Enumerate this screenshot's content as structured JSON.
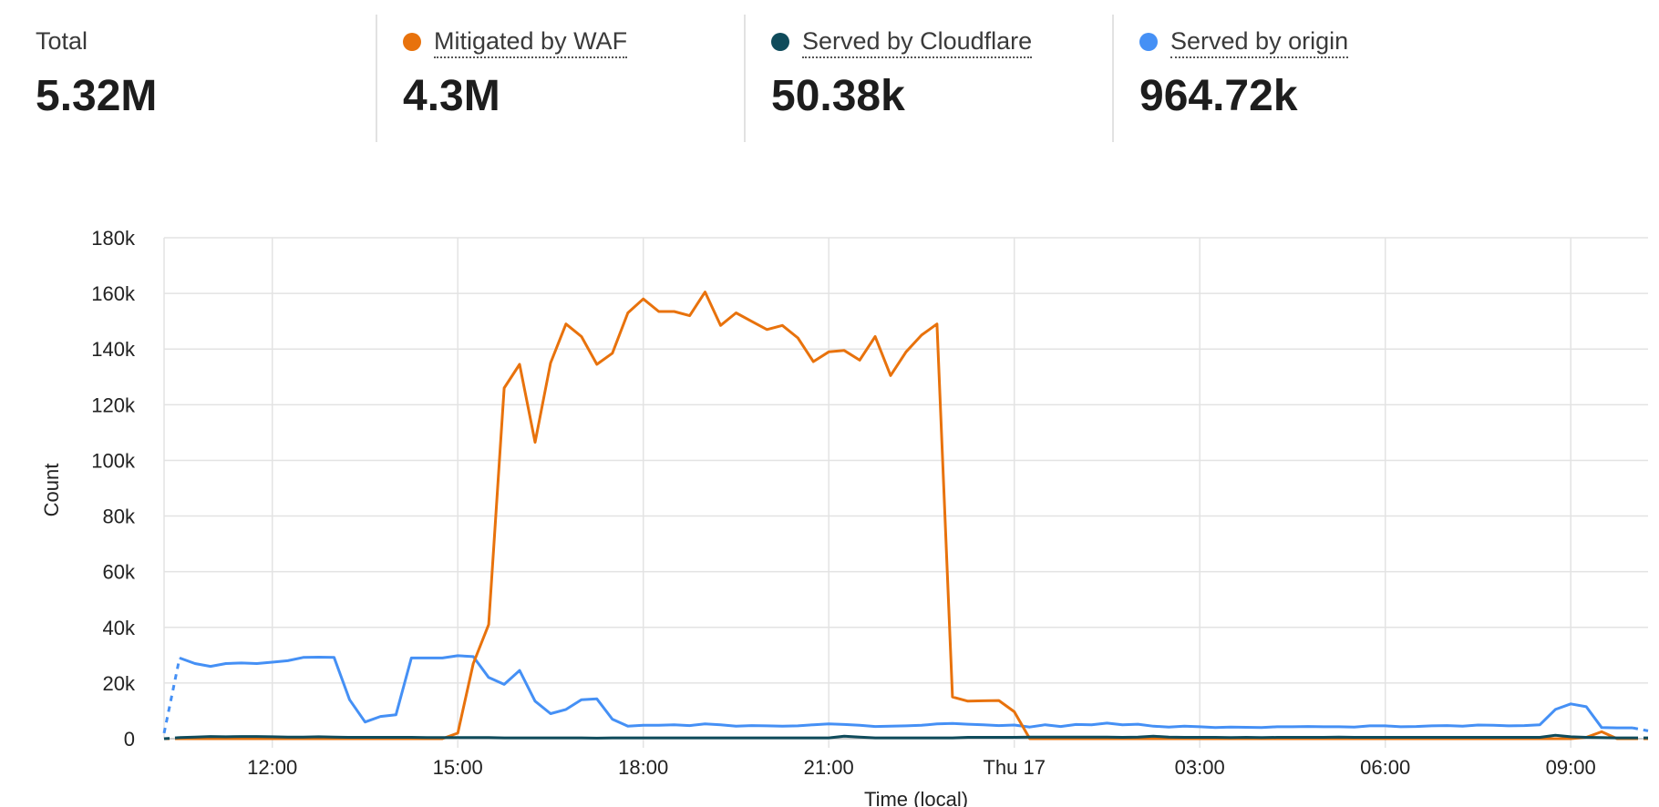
{
  "summary": {
    "total": {
      "label": "Total",
      "value": "5.32M"
    },
    "waf": {
      "label": "Mitigated by WAF",
      "value": "4.3M",
      "color": "#e8720c"
    },
    "cloudflare": {
      "label": "Served by Cloudflare",
      "value": "50.38k",
      "color": "#0f4b5b"
    },
    "origin": {
      "label": "Served by origin",
      "value": "964.72k",
      "color": "#4590f5"
    }
  },
  "chart_data": {
    "type": "line",
    "xlabel": "Time (local)",
    "ylabel": "Count",
    "ylim": [
      0,
      180000
    ],
    "yticks": [
      0,
      20000,
      40000,
      60000,
      80000,
      100000,
      120000,
      140000,
      160000,
      180000
    ],
    "ytick_labels": [
      "0",
      "20k",
      "40k",
      "60k",
      "80k",
      "100k",
      "120k",
      "140k",
      "160k",
      "180k"
    ],
    "x_unit": "hours since 00:00 on the day before Thu 17",
    "xlim": [
      10.25,
      34.25
    ],
    "xticks": [
      12,
      15,
      18,
      21,
      24,
      27,
      30,
      33
    ],
    "xtick_labels": [
      "12:00",
      "15:00",
      "18:00",
      "21:00",
      "Thu 17",
      "03:00",
      "06:00",
      "09:00"
    ],
    "grid": true,
    "series": [
      {
        "name": "Served by origin",
        "color": "#4590f5",
        "x": [
          10.25,
          10.5,
          10.75,
          11.0,
          11.25,
          11.5,
          11.75,
          12.0,
          12.25,
          12.5,
          12.75,
          13.0,
          13.25,
          13.5,
          13.75,
          14.0,
          14.25,
          14.5,
          14.75,
          15.0,
          15.25,
          15.5,
          15.75,
          16.0,
          16.25,
          16.5,
          16.75,
          17.0,
          17.25,
          17.5,
          17.75,
          18.0,
          18.25,
          18.5,
          18.75,
          19.0,
          19.25,
          19.5,
          19.75,
          20.0,
          20.25,
          20.5,
          20.75,
          21.0,
          21.25,
          21.5,
          21.75,
          22.0,
          22.25,
          22.5,
          22.75,
          23.0,
          23.25,
          23.5,
          23.75,
          24.0,
          24.25,
          24.5,
          24.75,
          25.0,
          25.25,
          25.5,
          25.75,
          26.0,
          26.25,
          26.5,
          26.75,
          27.0,
          27.25,
          27.5,
          27.75,
          28.0,
          28.25,
          28.5,
          28.75,
          29.0,
          29.25,
          29.5,
          29.75,
          30.0,
          30.25,
          30.5,
          30.75,
          31.0,
          31.25,
          31.5,
          31.75,
          32.0,
          32.25,
          32.5,
          32.75,
          33.0,
          33.25,
          33.5,
          33.75,
          34.0,
          34.25
        ],
        "values": [
          2000,
          29000,
          27000,
          26000,
          27000,
          27200,
          27000,
          27500,
          28000,
          29200,
          29300,
          29200,
          14000,
          6000,
          8000,
          8600,
          29000,
          29000,
          29000,
          29800,
          29500,
          22000,
          19500,
          24500,
          13500,
          9000,
          10500,
          14000,
          14300,
          7000,
          4500,
          4800,
          4800,
          5000,
          4700,
          5300,
          5000,
          4500,
          4700,
          4600,
          4500,
          4600,
          5000,
          5300,
          5100,
          4800,
          4400,
          4500,
          4600,
          4800,
          5300,
          5500,
          5200,
          5000,
          4700,
          4900,
          4200,
          5000,
          4400,
          5100,
          5000,
          5600,
          5000,
          5200,
          4500,
          4200,
          4500,
          4300,
          4000,
          4200,
          4100,
          4000,
          4300,
          4300,
          4400,
          4300,
          4300,
          4200,
          4600,
          4600,
          4300,
          4400,
          4600,
          4700,
          4500,
          4900,
          4800,
          4600,
          4700,
          5000,
          10500,
          12500,
          11500,
          4000,
          3900,
          3900,
          2800
        ],
        "dashed_start_segments": 1,
        "dashed_end_segments": 1
      },
      {
        "name": "Mitigated by WAF",
        "color": "#e8720c",
        "x": [
          10.25,
          10.5,
          10.75,
          11.0,
          11.25,
          11.5,
          11.75,
          12.0,
          12.25,
          12.5,
          12.75,
          13.0,
          13.25,
          13.5,
          13.75,
          14.0,
          14.25,
          14.5,
          14.75,
          15.0,
          15.25,
          15.5,
          15.75,
          16.0,
          16.25,
          16.5,
          16.75,
          17.0,
          17.25,
          17.5,
          17.75,
          18.0,
          18.25,
          18.5,
          18.75,
          19.0,
          19.25,
          19.5,
          19.75,
          20.0,
          20.25,
          20.5,
          20.75,
          21.0,
          21.25,
          21.5,
          21.75,
          22.0,
          22.25,
          22.5,
          22.75,
          23.0,
          23.25,
          23.5,
          23.75,
          24.0,
          24.25,
          24.5,
          24.75,
          25.0,
          25.25,
          25.5,
          25.75,
          26.0,
          26.25,
          26.5,
          26.75,
          27.0,
          27.25,
          27.5,
          27.75,
          28.0,
          28.25,
          28.5,
          28.75,
          29.0,
          29.25,
          29.5,
          29.75,
          30.0,
          30.25,
          30.5,
          30.75,
          31.0,
          31.25,
          31.5,
          31.75,
          32.0,
          32.25,
          32.5,
          32.75,
          33.0,
          33.25,
          33.5,
          33.75,
          34.0,
          34.25
        ],
        "values": [
          0,
          0,
          0,
          0,
          0,
          0,
          0,
          0,
          0,
          0,
          0,
          0,
          0,
          0,
          0,
          0,
          0,
          0,
          0,
          2000,
          27000,
          41000,
          126000,
          134500,
          106500,
          135000,
          149000,
          144500,
          134500,
          138500,
          153000,
          158000,
          153500,
          153500,
          152000,
          160500,
          148500,
          153000,
          150000,
          147000,
          148500,
          144000,
          135500,
          139000,
          139500,
          136000,
          144500,
          130500,
          139000,
          145000,
          149000,
          15000,
          13500,
          13600,
          13700,
          9700,
          0,
          0,
          0,
          0,
          0,
          0,
          0,
          0,
          0,
          0,
          0,
          0,
          0,
          0,
          0,
          0,
          0,
          0,
          0,
          0,
          0,
          0,
          0,
          0,
          0,
          0,
          0,
          0,
          0,
          0,
          0,
          0,
          0,
          0,
          0,
          0,
          500,
          2500,
          0,
          0,
          0
        ],
        "dashed_start_segments": 1,
        "dashed_end_segments": 1
      },
      {
        "name": "Served by Cloudflare",
        "color": "#0f4b5b",
        "x": [
          10.25,
          10.5,
          10.75,
          11.0,
          11.25,
          11.5,
          11.75,
          12.0,
          12.25,
          12.5,
          12.75,
          13.0,
          13.25,
          13.5,
          13.75,
          14.0,
          14.25,
          14.5,
          14.75,
          15.0,
          15.25,
          15.5,
          15.75,
          16.0,
          16.25,
          16.5,
          16.75,
          17.0,
          17.25,
          17.5,
          17.75,
          18.0,
          18.25,
          18.5,
          18.75,
          19.0,
          19.25,
          19.5,
          19.75,
          20.0,
          20.25,
          20.5,
          20.75,
          21.0,
          21.25,
          21.5,
          21.75,
          22.0,
          22.25,
          22.5,
          22.75,
          23.0,
          23.25,
          23.5,
          23.75,
          24.0,
          24.25,
          24.5,
          24.75,
          25.0,
          25.25,
          25.5,
          25.75,
          26.0,
          26.25,
          26.5,
          26.75,
          27.0,
          27.25,
          27.5,
          27.75,
          28.0,
          28.25,
          28.5,
          28.75,
          29.0,
          29.25,
          29.5,
          29.75,
          30.0,
          30.25,
          30.5,
          30.75,
          31.0,
          31.25,
          31.5,
          31.75,
          32.0,
          32.25,
          32.5,
          32.75,
          33.0,
          33.25,
          33.5,
          33.75,
          34.0,
          34.25
        ],
        "values": [
          0,
          400,
          600,
          800,
          700,
          800,
          800,
          700,
          600,
          600,
          700,
          600,
          500,
          500,
          500,
          500,
          500,
          400,
          400,
          400,
          400,
          400,
          300,
          300,
          300,
          300,
          300,
          300,
          200,
          300,
          300,
          300,
          300,
          300,
          300,
          300,
          300,
          300,
          300,
          300,
          300,
          300,
          300,
          300,
          900,
          600,
          300,
          300,
          300,
          300,
          300,
          300,
          500,
          500,
          500,
          500,
          600,
          600,
          600,
          600,
          600,
          600,
          500,
          600,
          900,
          600,
          500,
          500,
          500,
          400,
          500,
          400,
          500,
          500,
          500,
          500,
          600,
          500,
          500,
          500,
          500,
          500,
          500,
          500,
          500,
          500,
          500,
          500,
          500,
          500,
          1200,
          700,
          500,
          400,
          300,
          300,
          300
        ],
        "dashed_start_segments": 1,
        "dashed_end_segments": 1
      }
    ]
  }
}
